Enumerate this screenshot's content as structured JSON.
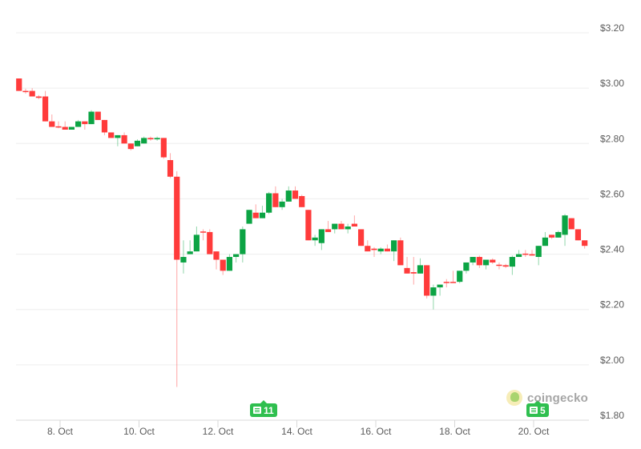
{
  "chart_data": {
    "type": "candlestick",
    "interval": "4h",
    "columns": [
      "time",
      "open",
      "high",
      "low",
      "close"
    ],
    "candles": [
      [
        "7 Oct 00:00",
        3.035,
        3.035,
        2.99,
        2.99
      ],
      [
        "7 Oct 04:00",
        2.99,
        2.998,
        2.98,
        2.988
      ],
      [
        "7 Oct 08:00",
        2.99,
        3.0,
        2.97,
        2.97
      ],
      [
        "7 Oct 12:00",
        2.97,
        2.975,
        2.96,
        2.965
      ],
      [
        "7 Oct 16:00",
        2.97,
        2.99,
        2.88,
        2.88
      ],
      [
        "7 Oct 20:00",
        2.88,
        2.905,
        2.86,
        2.86
      ],
      [
        "8 Oct 00:00",
        2.862,
        2.88,
        2.855,
        2.86
      ],
      [
        "8 Oct 04:00",
        2.86,
        2.88,
        2.85,
        2.85
      ],
      [
        "8 Oct 08:00",
        2.85,
        2.86,
        2.85,
        2.86
      ],
      [
        "8 Oct 12:00",
        2.86,
        2.885,
        2.86,
        2.88
      ],
      [
        "8 Oct 16:00",
        2.88,
        2.88,
        2.85,
        2.87
      ],
      [
        "8 Oct 20:00",
        2.87,
        2.92,
        2.87,
        2.915
      ],
      [
        "9 Oct 00:00",
        2.915,
        2.915,
        2.885,
        2.885
      ],
      [
        "9 Oct 04:00",
        2.885,
        2.885,
        2.83,
        2.84
      ],
      [
        "9 Oct 08:00",
        2.84,
        2.84,
        2.82,
        2.82
      ],
      [
        "9 Oct 12:00",
        2.82,
        2.83,
        2.79,
        2.83
      ],
      [
        "9 Oct 16:00",
        2.83,
        2.84,
        2.8,
        2.8
      ],
      [
        "9 Oct 20:00",
        2.8,
        2.8,
        2.775,
        2.78
      ],
      [
        "10 Oct 00:00",
        2.79,
        2.815,
        2.79,
        2.81
      ],
      [
        "10 Oct 04:00",
        2.8,
        2.825,
        2.8,
        2.82
      ],
      [
        "10 Oct 08:00",
        2.82,
        2.825,
        2.81,
        2.815
      ],
      [
        "10 Oct 12:00",
        2.815,
        2.825,
        2.81,
        2.82
      ],
      [
        "10 Oct 16:00",
        2.82,
        2.82,
        2.745,
        2.75
      ],
      [
        "10 Oct 20:00",
        2.74,
        2.765,
        2.675,
        2.68
      ],
      [
        "11 Oct 00:00",
        2.68,
        2.7,
        1.92,
        2.38
      ],
      [
        "11 Oct 04:00",
        2.37,
        2.45,
        2.33,
        2.39
      ],
      [
        "11 Oct 08:00",
        2.4,
        2.45,
        2.4,
        2.41
      ],
      [
        "11 Oct 12:00",
        2.41,
        2.5,
        2.41,
        2.47
      ],
      [
        "11 Oct 16:00",
        2.482,
        2.49,
        2.45,
        2.48
      ],
      [
        "11 Oct 20:00",
        2.48,
        2.49,
        2.4,
        2.4
      ],
      [
        "12 Oct 00:00",
        2.41,
        2.41,
        2.345,
        2.38
      ],
      [
        "12 Oct 04:00",
        2.38,
        2.38,
        2.325,
        2.34
      ],
      [
        "12 Oct 08:00",
        2.34,
        2.4,
        2.34,
        2.39
      ],
      [
        "12 Oct 12:00",
        2.39,
        2.4,
        2.37,
        2.4
      ],
      [
        "12 Oct 16:00",
        2.4,
        2.5,
        2.37,
        2.49
      ],
      [
        "12 Oct 20:00",
        2.51,
        2.56,
        2.51,
        2.56
      ],
      [
        "13 Oct 00:00",
        2.55,
        2.58,
        2.53,
        2.53
      ],
      [
        "13 Oct 04:00",
        2.53,
        2.575,
        2.53,
        2.55
      ],
      [
        "13 Oct 08:00",
        2.55,
        2.625,
        2.545,
        2.62
      ],
      [
        "13 Oct 12:00",
        2.62,
        2.645,
        2.57,
        2.57
      ],
      [
        "13 Oct 16:00",
        2.57,
        2.6,
        2.56,
        2.59
      ],
      [
        "13 Oct 20:00",
        2.59,
        2.645,
        2.59,
        2.63
      ],
      [
        "14 Oct 00:00",
        2.63,
        2.645,
        2.6,
        2.6
      ],
      [
        "14 Oct 04:00",
        2.61,
        2.615,
        2.57,
        2.57
      ],
      [
        "14 Oct 08:00",
        2.56,
        2.56,
        2.45,
        2.45
      ],
      [
        "14 Oct 12:00",
        2.45,
        2.47,
        2.43,
        2.46
      ],
      [
        "14 Oct 16:00",
        2.44,
        2.49,
        2.415,
        2.49
      ],
      [
        "14 Oct 20:00",
        2.49,
        2.52,
        2.48,
        2.48
      ],
      [
        "15 Oct 00:00",
        2.49,
        2.51,
        2.475,
        2.51
      ],
      [
        "15 Oct 04:00",
        2.51,
        2.52,
        2.49,
        2.49
      ],
      [
        "15 Oct 08:00",
        2.49,
        2.51,
        2.475,
        2.5
      ],
      [
        "15 Oct 12:00",
        2.51,
        2.54,
        2.5,
        2.5
      ],
      [
        "15 Oct 16:00",
        2.49,
        2.49,
        2.43,
        2.43
      ],
      [
        "15 Oct 20:00",
        2.43,
        2.45,
        2.41,
        2.41
      ],
      [
        "16 Oct 00:00",
        2.42,
        2.425,
        2.39,
        2.415
      ],
      [
        "16 Oct 04:00",
        2.41,
        2.425,
        2.4,
        2.42
      ],
      [
        "16 Oct 08:00",
        2.42,
        2.435,
        2.41,
        2.41
      ],
      [
        "16 Oct 12:00",
        2.41,
        2.45,
        2.375,
        2.45
      ],
      [
        "16 Oct 16:00",
        2.45,
        2.46,
        2.36,
        2.36
      ],
      [
        "16 Oct 20:00",
        2.35,
        2.39,
        2.33,
        2.33
      ],
      [
        "17 Oct 00:00",
        2.335,
        2.39,
        2.29,
        2.33
      ],
      [
        "17 Oct 04:00",
        2.33,
        2.385,
        2.33,
        2.36
      ],
      [
        "17 Oct 08:00",
        2.36,
        2.36,
        2.24,
        2.25
      ],
      [
        "17 Oct 12:00",
        2.25,
        2.29,
        2.2,
        2.28
      ],
      [
        "17 Oct 16:00",
        2.28,
        2.29,
        2.25,
        2.29
      ],
      [
        "17 Oct 20:00",
        2.3,
        2.31,
        2.28,
        2.298
      ],
      [
        "18 Oct 00:00",
        2.3,
        2.34,
        2.3,
        2.298
      ],
      [
        "18 Oct 04:00",
        2.3,
        2.34,
        2.295,
        2.34
      ],
      [
        "18 Oct 08:00",
        2.34,
        2.37,
        2.33,
        2.37
      ],
      [
        "18 Oct 12:00",
        2.37,
        2.39,
        2.36,
        2.39
      ],
      [
        "18 Oct 16:00",
        2.39,
        2.395,
        2.35,
        2.36
      ],
      [
        "18 Oct 20:00",
        2.36,
        2.38,
        2.345,
        2.38
      ],
      [
        "19 Oct 00:00",
        2.38,
        2.385,
        2.365,
        2.37
      ],
      [
        "19 Oct 04:00",
        2.362,
        2.37,
        2.345,
        2.36
      ],
      [
        "19 Oct 08:00",
        2.36,
        2.365,
        2.35,
        2.355
      ],
      [
        "19 Oct 12:00",
        2.355,
        2.395,
        2.325,
        2.39
      ],
      [
        "19 Oct 16:00",
        2.39,
        2.415,
        2.39,
        2.4
      ],
      [
        "19 Oct 20:00",
        2.402,
        2.415,
        2.39,
        2.4
      ],
      [
        "20 Oct 00:00",
        2.4,
        2.415,
        2.395,
        2.395
      ],
      [
        "20 Oct 04:00",
        2.39,
        2.43,
        2.36,
        2.43
      ],
      [
        "20 Oct 08:00",
        2.43,
        2.48,
        2.43,
        2.46
      ],
      [
        "20 Oct 12:00",
        2.47,
        2.47,
        2.455,
        2.46
      ],
      [
        "20 Oct 16:00",
        2.46,
        2.485,
        2.46,
        2.48
      ],
      [
        "20 Oct 20:00",
        2.47,
        2.545,
        2.43,
        2.54
      ],
      [
        "21 Oct 00:00",
        2.53,
        2.53,
        2.49,
        2.49
      ],
      [
        "21 Oct 04:00",
        2.49,
        2.49,
        2.45,
        2.45
      ],
      [
        "21 Oct 08:00",
        2.45,
        2.45,
        2.42,
        2.43
      ]
    ],
    "x_ticks": [
      {
        "label": "8. Oct",
        "day": 8
      },
      {
        "label": "10. Oct",
        "day": 10
      },
      {
        "label": "12. Oct",
        "day": 12
      },
      {
        "label": "14. Oct",
        "day": 14
      },
      {
        "label": "16. Oct",
        "day": 16
      },
      {
        "label": "18. Oct",
        "day": 18
      },
      {
        "label": "20. Oct",
        "day": 20
      }
    ],
    "y_ticks": [
      {
        "label": "$1.80",
        "value": 1.8
      },
      {
        "label": "$2.00",
        "value": 2.0
      },
      {
        "label": "$2.20",
        "value": 2.2
      },
      {
        "label": "$2.40",
        "value": 2.4
      },
      {
        "label": "$2.60",
        "value": 2.6
      },
      {
        "label": "$2.80",
        "value": 2.8
      },
      {
        "label": "$3.00",
        "value": 3.0
      },
      {
        "label": "$3.20",
        "value": 3.2
      }
    ],
    "ylim": [
      1.8,
      3.2
    ],
    "grid": true,
    "y_axis_position": "right",
    "colors": {
      "up": "#0ca444",
      "down": "#ff3b3b",
      "grid": "#eeeeee"
    }
  },
  "news_badges": [
    {
      "count": "11",
      "date": "13 Oct"
    },
    {
      "count": "5",
      "date": "20 Oct"
    }
  ],
  "watermark": {
    "text": "coingecko"
  }
}
